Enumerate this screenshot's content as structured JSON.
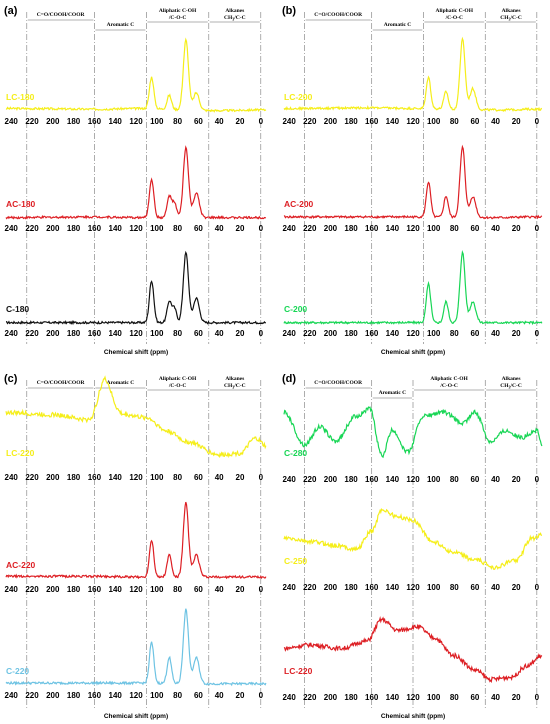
{
  "chart_data": [
    {
      "type": "line",
      "panel_label": "(a)",
      "regions": [
        {
          "label": "C=O/COOH/COOR",
          "from": 225,
          "to": 160
        },
        {
          "label": "Aromatic C",
          "from": 160,
          "to": 110
        },
        {
          "label": "Aliphatic C-OH",
          "label2": "/C-O-C",
          "from": 110,
          "to": 50
        },
        {
          "label": "Alkanes",
          "label2": "CH3/C-C",
          "from": 50,
          "to": 0
        }
      ],
      "x_ticks": [
        "240",
        "220",
        "200",
        "180",
        "160",
        "140",
        "120",
        "100",
        "80",
        "60",
        "40",
        "20",
        "0"
      ],
      "xlabel": "Chemical shift (ppm)",
      "xlim": [
        245,
        -5
      ],
      "stacks": [
        {
          "name": "LC-180",
          "color": "#f5ee1a",
          "peaks": [
            [
              105,
              0.45,
              3
            ],
            [
              88,
              0.2,
              3
            ],
            [
              72,
              1.0,
              3.5
            ],
            [
              62,
              0.25,
              4
            ]
          ],
          "base": [
            [
              240,
              0.05
            ],
            [
              160,
              0.04
            ],
            [
              120,
              0.05
            ],
            [
              40,
              0.02
            ],
            [
              0,
              0.03
            ]
          ]
        },
        {
          "name": "AC-180",
          "color": "#dd1f24",
          "peaks": [
            [
              105,
              0.55,
              3
            ],
            [
              88,
              0.3,
              3
            ],
            [
              83,
              0.2,
              3
            ],
            [
              72,
              1.0,
              3.5
            ],
            [
              62,
              0.35,
              4
            ]
          ],
          "base": [
            [
              240,
              0.02
            ],
            [
              160,
              0.03
            ],
            [
              120,
              0.02
            ],
            [
              40,
              0.02
            ],
            [
              0,
              0.02
            ]
          ]
        },
        {
          "name": "C-180",
          "color": "#111111",
          "peaks": [
            [
              105,
              0.6,
              3
            ],
            [
              88,
              0.3,
              3
            ],
            [
              83,
              0.2,
              3
            ],
            [
              72,
              1.0,
              3.5
            ],
            [
              62,
              0.35,
              4
            ]
          ],
          "base": [
            [
              240,
              0.02
            ],
            [
              160,
              0.02
            ],
            [
              120,
              0.02
            ],
            [
              40,
              0.02
            ],
            [
              0,
              0.02
            ]
          ]
        }
      ]
    },
    {
      "type": "line",
      "panel_label": "(b)",
      "regions": [
        {
          "label": "C=O/COOH/COOR",
          "from": 225,
          "to": 160
        },
        {
          "label": "Aromatic C",
          "from": 160,
          "to": 110
        },
        {
          "label": "Aliphatic C-OH",
          "label2": "/C-O-C",
          "from": 110,
          "to": 50
        },
        {
          "label": "Alkanes",
          "label2": "CH3/C-C",
          "from": 50,
          "to": 0
        }
      ],
      "x_ticks": [
        "240",
        "220",
        "200",
        "180",
        "160",
        "140",
        "120",
        "100",
        "80",
        "60",
        "40",
        "20",
        "0"
      ],
      "xlabel": "Chemical shift (ppm)",
      "xlim": [
        245,
        -5
      ],
      "stacks": [
        {
          "name": "LC-200",
          "color": "#f5ee1a",
          "peaks": [
            [
              105,
              0.45,
              3
            ],
            [
              88,
              0.25,
              3
            ],
            [
              72,
              1.0,
              3.5
            ],
            [
              62,
              0.3,
              4
            ]
          ],
          "base": [
            [
              240,
              0.05
            ],
            [
              160,
              0.06
            ],
            [
              120,
              0.05
            ],
            [
              40,
              0.03
            ],
            [
              0,
              0.04
            ]
          ]
        },
        {
          "name": "AC-200",
          "color": "#dd1f24",
          "peaks": [
            [
              105,
              0.5,
              3
            ],
            [
              88,
              0.3,
              3
            ],
            [
              72,
              1.0,
              3.5
            ],
            [
              62,
              0.3,
              4
            ]
          ],
          "base": [
            [
              240,
              0.03
            ],
            [
              160,
              0.03
            ],
            [
              120,
              0.03
            ],
            [
              40,
              0.02
            ],
            [
              0,
              0.03
            ]
          ]
        },
        {
          "name": "C-200",
          "color": "#18d655",
          "peaks": [
            [
              105,
              0.55,
              3
            ],
            [
              88,
              0.3,
              3
            ],
            [
              72,
              1.0,
              3.5
            ],
            [
              62,
              0.3,
              4
            ]
          ],
          "base": [
            [
              240,
              0.02
            ],
            [
              160,
              0.02
            ],
            [
              120,
              0.02
            ],
            [
              40,
              0.02
            ],
            [
              0,
              0.02
            ]
          ]
        }
      ]
    },
    {
      "type": "line",
      "panel_label": "(c)",
      "regions": [
        {
          "label": "C=O/COOH/COOR",
          "from": 225,
          "to": 160
        },
        {
          "label": "Aromatic C",
          "from": 160,
          "to": 110
        },
        {
          "label": "Aliphatic C-OH",
          "label2": "/C-O-C",
          "from": 110,
          "to": 50
        },
        {
          "label": "Alkanes",
          "label2": "CH3/C-C",
          "from": 50,
          "to": 0
        }
      ],
      "x_ticks": [
        "240",
        "220",
        "200",
        "180",
        "160",
        "140",
        "120",
        "100",
        "80",
        "60",
        "40",
        "20",
        "0"
      ],
      "xlabel": "Chemical shift (ppm)",
      "xlim": [
        245,
        -5
      ],
      "stacks": [
        {
          "name": "LC-220",
          "color": "#f5ee1a",
          "peaks": [
            [
              150,
              0.35,
              8
            ]
          ],
          "base": [
            [
              245,
              0.75
            ],
            [
              200,
              0.72
            ],
            [
              165,
              0.65
            ],
            [
              150,
              0.85
            ],
            [
              130,
              0.72
            ],
            [
              110,
              0.68
            ],
            [
              90,
              0.5
            ],
            [
              70,
              0.35
            ],
            [
              40,
              0.18
            ],
            [
              20,
              0.2
            ],
            [
              5,
              0.4
            ],
            [
              -5,
              0.3
            ]
          ]
        },
        {
          "name": "AC-220",
          "color": "#dd1f24",
          "peaks": [
            [
              105,
              0.5,
              3
            ],
            [
              88,
              0.3,
              3
            ],
            [
              72,
              1.0,
              3.5
            ],
            [
              62,
              0.3,
              4
            ]
          ],
          "base": [
            [
              240,
              0.05
            ],
            [
              160,
              0.05
            ],
            [
              120,
              0.04
            ],
            [
              40,
              0.04
            ],
            [
              0,
              0.04
            ]
          ]
        },
        {
          "name": "C-220",
          "color": "#6ec3e3",
          "peaks": [
            [
              105,
              0.55,
              3
            ],
            [
              88,
              0.35,
              3
            ],
            [
              72,
              1.0,
              3.5
            ],
            [
              62,
              0.35,
              4
            ]
          ],
          "base": [
            [
              240,
              0.04
            ],
            [
              160,
              0.04
            ],
            [
              120,
              0.04
            ],
            [
              40,
              0.03
            ],
            [
              0,
              0.03
            ]
          ]
        }
      ]
    },
    {
      "type": "line",
      "panel_label": "(d)",
      "regions": [
        {
          "label": "C=O/COOH/COOR",
          "from": 225,
          "to": 160
        },
        {
          "label": "Aromatic C",
          "from": 160,
          "to": 120
        },
        {
          "label": "Aliphatic C-OH",
          "label2": "/C-O-C",
          "from": 120,
          "to": 50
        },
        {
          "label": "Alkanes",
          "label2": "CH3/C-C",
          "from": 50,
          "to": 0
        }
      ],
      "x_ticks": [
        "240",
        "220",
        "200",
        "180",
        "160",
        "140",
        "120",
        "100",
        "80",
        "60",
        "40",
        "20",
        "0"
      ],
      "xlabel": "Chemical shift (ppm)",
      "xlim": [
        245,
        -5
      ],
      "stacks": [
        {
          "name": "C-280",
          "color": "#18d655",
          "peaks": [],
          "base": [
            [
              245,
              0.8
            ],
            [
              225,
              0.35
            ],
            [
              210,
              0.6
            ],
            [
              195,
              0.4
            ],
            [
              175,
              0.75
            ],
            [
              162,
              0.85
            ],
            [
              150,
              0.2
            ],
            [
              140,
              0.55
            ],
            [
              125,
              0.25
            ],
            [
              110,
              0.75
            ],
            [
              90,
              0.8
            ],
            [
              72,
              0.65
            ],
            [
              60,
              0.8
            ],
            [
              45,
              0.4
            ],
            [
              30,
              0.55
            ],
            [
              15,
              0.45
            ],
            [
              0,
              0.55
            ],
            [
              -5,
              0.35
            ]
          ]
        },
        {
          "name": "C-250",
          "color": "#f5ee1a",
          "peaks": [],
          "base": [
            [
              245,
              0.55
            ],
            [
              215,
              0.5
            ],
            [
              195,
              0.45
            ],
            [
              175,
              0.4
            ],
            [
              160,
              0.65
            ],
            [
              150,
              0.95
            ],
            [
              135,
              0.85
            ],
            [
              120,
              0.8
            ],
            [
              100,
              0.5
            ],
            [
              80,
              0.35
            ],
            [
              60,
              0.25
            ],
            [
              40,
              0.15
            ],
            [
              20,
              0.25
            ],
            [
              5,
              0.55
            ],
            [
              -5,
              0.6
            ]
          ]
        },
        {
          "name": "LC-220",
          "color": "#dd1f24",
          "peaks": [],
          "base": [
            [
              245,
              0.55
            ],
            [
              220,
              0.6
            ],
            [
              190,
              0.55
            ],
            [
              165,
              0.65
            ],
            [
              150,
              0.95
            ],
            [
              135,
              0.8
            ],
            [
              115,
              0.85
            ],
            [
              100,
              0.7
            ],
            [
              80,
              0.45
            ],
            [
              60,
              0.25
            ],
            [
              45,
              0.12
            ],
            [
              25,
              0.15
            ],
            [
              10,
              0.3
            ],
            [
              -5,
              0.45
            ]
          ]
        }
      ]
    }
  ]
}
